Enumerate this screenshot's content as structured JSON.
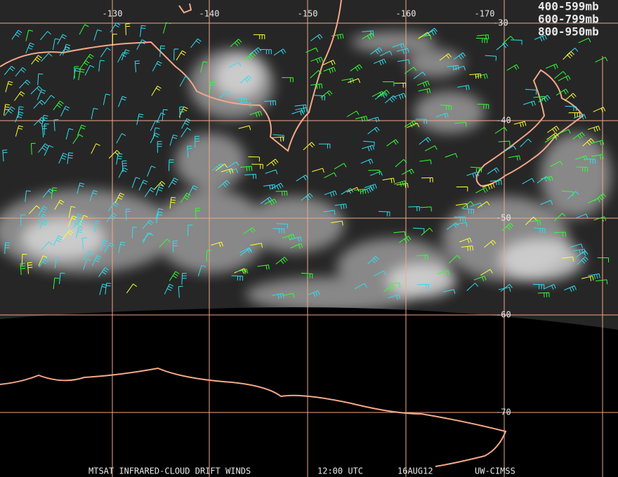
{
  "map": {
    "longitude_labels": [
      "-130",
      "-140",
      "-150",
      "-160",
      "-170"
    ],
    "latitude_labels": [
      "-30",
      "-40",
      "-50",
      "-60",
      "-70"
    ],
    "legend": [
      {
        "label": "400-599mb",
        "color": "#33ff33"
      },
      {
        "label": "600-799mb",
        "color": "#ffff33"
      },
      {
        "label": "800-950mb",
        "color": "#33ddee"
      }
    ],
    "footer": [
      "MTSAT INFRARED-CLOUD DRIFT WINDS",
      "12:00 UTC",
      "16AUG12",
      "UW-CIMSS"
    ]
  }
}
